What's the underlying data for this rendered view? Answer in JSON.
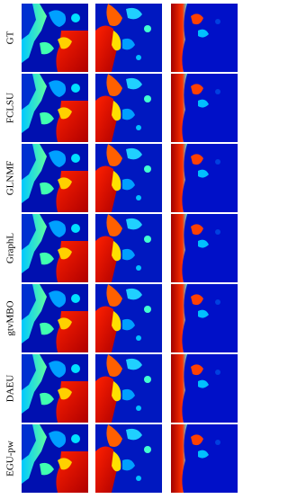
{
  "row_labels": [
    "GT",
    "FCLSU",
    "GLNMF",
    "GraphL",
    "gtvMBO",
    "DAEU",
    "EGU-pw"
  ]
}
